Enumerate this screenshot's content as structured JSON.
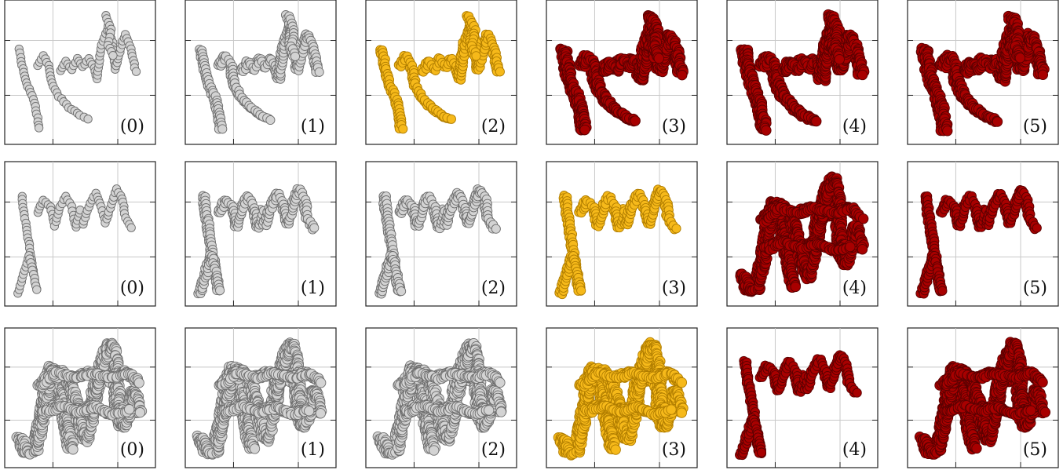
{
  "colors": {
    "gray": "#d3d3d3",
    "gray_edge": "#6e6e6e",
    "gold": "#f6b91a",
    "gold_edge": "#b07d00",
    "red": "#a80000",
    "red_edge": "#5a0000",
    "frame": "#222222",
    "grid": "#c8c8c8"
  },
  "chart_data": [
    {
      "type": "scatter",
      "row": 0,
      "panels": [
        {
          "label": "(0)",
          "color": "gray",
          "shape": "nn",
          "style": "sparse"
        },
        {
          "label": "(1)",
          "color": "gray",
          "shape": "nn",
          "style": "medium"
        },
        {
          "label": "(2)",
          "color": "gold",
          "shape": "nn",
          "style": "medium"
        },
        {
          "label": "(3)",
          "color": "red",
          "shape": "nn",
          "style": "dense"
        },
        {
          "label": "(4)",
          "color": "red",
          "shape": "nn",
          "style": "dense"
        },
        {
          "label": "(5)",
          "color": "red",
          "shape": "nn",
          "style": "dense"
        }
      ]
    },
    {
      "type": "scatter",
      "row": 1,
      "panels": [
        {
          "label": "(0)",
          "color": "gray",
          "shape": "mn",
          "style": "sparse"
        },
        {
          "label": "(1)",
          "color": "gray",
          "shape": "mn",
          "style": "medium"
        },
        {
          "label": "(2)",
          "color": "gray",
          "shape": "mn",
          "style": "medium"
        },
        {
          "label": "(3)",
          "color": "gold",
          "shape": "mn",
          "style": "medium"
        },
        {
          "label": "(4)",
          "color": "red",
          "shape": "dense",
          "style": "dense"
        },
        {
          "label": "(5)",
          "color": "red",
          "shape": "mn",
          "style": "medium"
        }
      ]
    },
    {
      "type": "scatter",
      "row": 2,
      "panels": [
        {
          "label": "(0)",
          "color": "gray",
          "shape": "dense",
          "style": "dense"
        },
        {
          "label": "(1)",
          "color": "gray",
          "shape": "dense",
          "style": "dense"
        },
        {
          "label": "(2)",
          "color": "gray",
          "shape": "dense",
          "style": "dense"
        },
        {
          "label": "(3)",
          "color": "gold",
          "shape": "dense",
          "style": "dense"
        },
        {
          "label": "(4)",
          "color": "red",
          "shape": "mn",
          "style": "medium"
        },
        {
          "label": "(5)",
          "color": "red",
          "shape": "dense",
          "style": "dense"
        }
      ]
    }
  ]
}
